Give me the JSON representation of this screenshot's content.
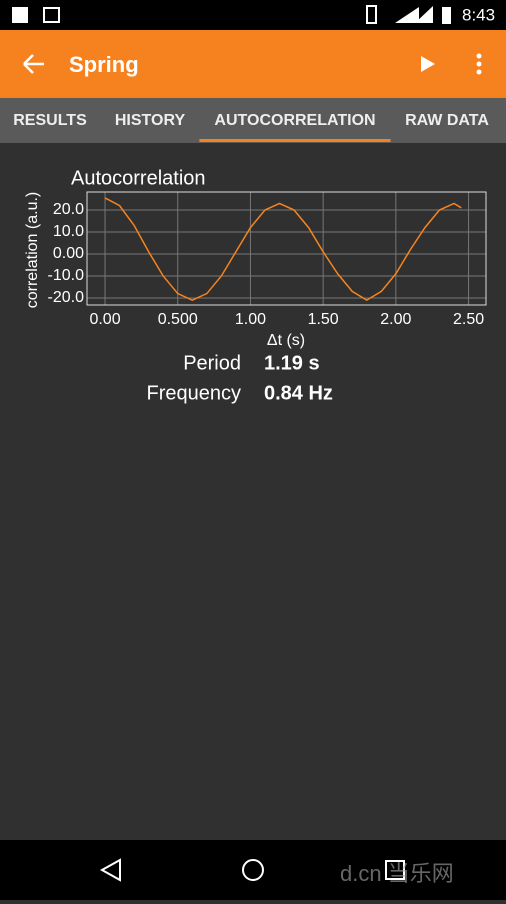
{
  "status_bar": {
    "time": "8:43"
  },
  "app_bar": {
    "title": "Spring"
  },
  "tabs": [
    "RESULTS",
    "HISTORY",
    "AUTOCORRELATION",
    "RAW DATA"
  ],
  "active_tab": 2,
  "chart_data": {
    "type": "line",
    "title": "Autocorrelation",
    "x_label": "Δt (s)",
    "y_label": "correlation (a.u.)",
    "x": [
      0,
      0.1,
      0.2,
      0.3,
      0.4,
      0.5,
      0.6,
      0.7,
      0.8,
      0.9,
      1.0,
      1.1,
      1.2,
      1.3,
      1.4,
      1.5,
      1.6,
      1.7,
      1.8,
      1.9,
      2.0,
      2.1,
      2.2,
      2.3,
      2.4,
      2.45
    ],
    "series": [
      {
        "color": "#f5841f",
        "values": [
          25.5,
          22,
          13,
          1,
          -10,
          -18,
          -21,
          -18,
          -10,
          1,
          12,
          20,
          23,
          20,
          12,
          1,
          -9,
          -17,
          -21,
          -17,
          -9,
          2,
          12,
          20,
          23,
          21
        ]
      }
    ],
    "xlim": [
      -0.124,
      2.62
    ],
    "ylim": [
      -23.2,
      28.2
    ],
    "xticks": [
      {
        "value": 0,
        "label": "0.00"
      },
      {
        "value": 0.5,
        "label": "0.500"
      },
      {
        "value": 1,
        "label": "1.00"
      },
      {
        "value": 1.5,
        "label": "1.50"
      },
      {
        "value": 2,
        "label": "2.00"
      },
      {
        "value": 2.5,
        "label": "2.50"
      }
    ],
    "yticks": [
      {
        "value": 20,
        "label": "20.0"
      },
      {
        "value": 10,
        "label": "10.0"
      },
      {
        "value": 0,
        "label": "0.00"
      },
      {
        "value": -10,
        "label": "-10.0"
      },
      {
        "value": -20,
        "label": "-20.0"
      }
    ],
    "grid": true
  },
  "results": [
    {
      "label": "Period",
      "value": "1.19 s"
    },
    {
      "label": "Frequency",
      "value": "0.84 Hz"
    }
  ],
  "watermark": "d.cn 当乐网"
}
